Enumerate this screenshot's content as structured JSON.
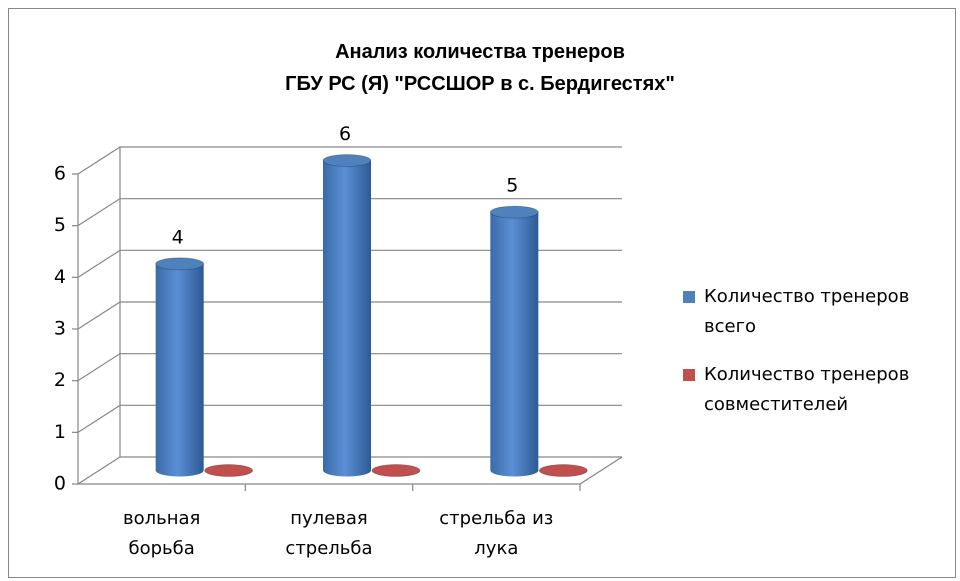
{
  "chart_data": {
    "type": "bar3d",
    "title": [
      "Анализ количества тренеров",
      "ГБУ РС (Я) \"РССШОР в с. Бердигестях\""
    ],
    "categories": [
      "вольная борьба",
      "пулевая стрельба",
      "стрельба из лука"
    ],
    "series": [
      {
        "name": "Количество тренеров всего",
        "color": "#4f81bd",
        "values": [
          4,
          6,
          5
        ],
        "show_labels": true
      },
      {
        "name": "Количество тренеров совместителей",
        "color": "#c0504d",
        "values": [
          0,
          0,
          0
        ],
        "show_labels": false
      }
    ],
    "ylim": [
      0,
      6
    ],
    "yticks": [
      0,
      1,
      2,
      3,
      4,
      5,
      6
    ],
    "grid": true,
    "legend": "right"
  }
}
